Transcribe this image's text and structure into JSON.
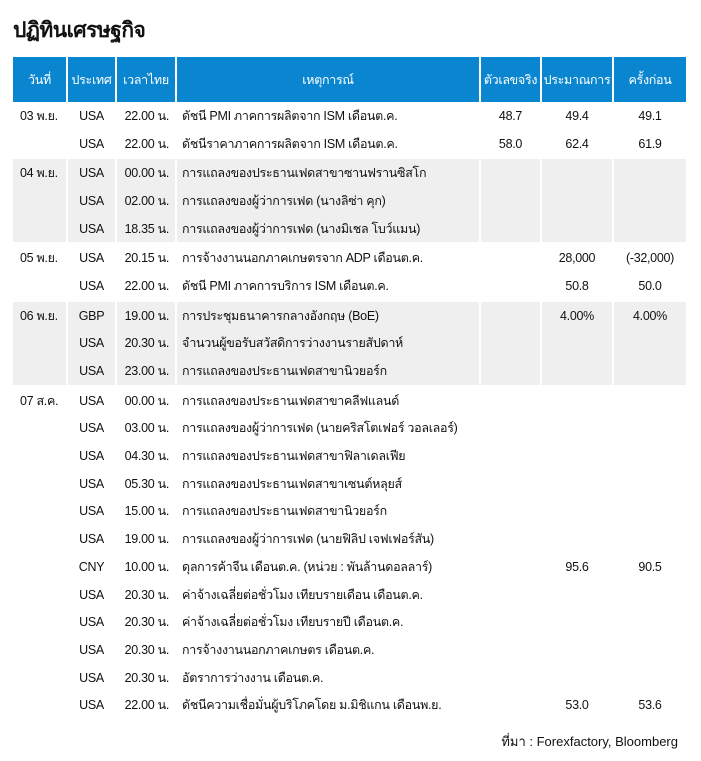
{
  "title": "ปฏิทินเศรษฐกิจ",
  "header_color": "#0a86d0",
  "columns": [
    "วันที่",
    "ประเทศ",
    "เวลาไทย",
    "เหตุการณ์",
    "ตัวเลขจริง",
    "ประมาณการ",
    "ครั้งก่อน"
  ],
  "rows": [
    {
      "date": "03 พ.ย.",
      "country": "USA",
      "time": "22.00 น.",
      "event": "ดัชนี PMI ภาคการผลิตจาก ISM เดือนต.ค.",
      "actual": "48.7",
      "forecast": "49.4",
      "previous": "49.1",
      "group": 0
    },
    {
      "date": "",
      "country": "USA",
      "time": "22.00 น.",
      "event": "ดัชนีราคาภาคการผลิตจาก ISM เดือนต.ค.",
      "actual": "58.0",
      "forecast": "62.4",
      "previous": "61.9",
      "group": 0
    },
    {
      "date": "04 พ.ย.",
      "country": "USA",
      "time": "00.00 น.",
      "event": "การแถลงของประธานเฟดสาขาซานฟรานซิสโก",
      "actual": "",
      "forecast": "",
      "previous": "",
      "group": 1
    },
    {
      "date": "",
      "country": "USA",
      "time": "02.00 น.",
      "event": "การแถลงของผู้ว่าการเฟด (นางลิซ่า คุก)",
      "actual": "",
      "forecast": "",
      "previous": "",
      "group": 1
    },
    {
      "date": "",
      "country": "USA",
      "time": "18.35 น.",
      "event": "การแถลงของผู้ว่าการเฟด (นางมิเชล โบว์แมน)",
      "actual": "",
      "forecast": "",
      "previous": "",
      "group": 1
    },
    {
      "date": "05 พ.ย.",
      "country": "USA",
      "time": "20.15 น.",
      "event": "การจ้างงานนอกภาคเกษตรจาก ADP เดือนต.ค.",
      "actual": "",
      "forecast": "28,000",
      "previous": "(-32,000)",
      "group": 2
    },
    {
      "date": "",
      "country": "USA",
      "time": "22.00 น.",
      "event": "ดัชนี PMI ภาคการบริการ ISM เดือนต.ค.",
      "actual": "",
      "forecast": "50.8",
      "previous": "50.0",
      "group": 2
    },
    {
      "date": "06 พ.ย.",
      "country": "GBP",
      "time": "19.00 น.",
      "event": "การประชุมธนาคารกลางอังกฤษ (BoE)",
      "actual": "",
      "forecast": "4.00%",
      "previous": "4.00%",
      "group": 3
    },
    {
      "date": "",
      "country": "USA",
      "time": "20.30 น.",
      "event": "จำนวนผู้ขอรับสวัสดิการว่างงานรายสัปดาห์",
      "actual": "",
      "forecast": "",
      "previous": "",
      "group": 3
    },
    {
      "date": "",
      "country": "USA",
      "time": "23.00 น.",
      "event": "การแถลงของประธานเฟดสาขานิวยอร์ก",
      "actual": "",
      "forecast": "",
      "previous": "",
      "group": 3
    },
    {
      "date": "07 ส.ค.",
      "country": "USA",
      "time": "00.00 น.",
      "event": "การแถลงของประธานเฟดสาขาคลีฟแลนด์",
      "actual": "",
      "forecast": "",
      "previous": "",
      "group": 4
    },
    {
      "date": "",
      "country": "USA",
      "time": "03.00 น.",
      "event": "การแถลงของผู้ว่าการเฟด (นายคริสโตเฟอร์ วอลเลอร์)",
      "actual": "",
      "forecast": "",
      "previous": "",
      "group": 4
    },
    {
      "date": "",
      "country": "USA",
      "time": "04.30 น.",
      "event": "การแถลงของประธานเฟดสาขาฟิลาเดลเฟีย",
      "actual": "",
      "forecast": "",
      "previous": "",
      "group": 4
    },
    {
      "date": "",
      "country": "USA",
      "time": "05.30 น.",
      "event": "การแถลงของประธานเฟดสาขาเซนต์หลุยส์",
      "actual": "",
      "forecast": "",
      "previous": "",
      "group": 4
    },
    {
      "date": "",
      "country": "USA",
      "time": "15.00 น.",
      "event": "การแถลงของประธานเฟดสาขานิวยอร์ก",
      "actual": "",
      "forecast": "",
      "previous": "",
      "group": 4
    },
    {
      "date": "",
      "country": "USA",
      "time": "19.00 น.",
      "event": "การแถลงของผู้ว่าการเฟด  (นายฟิลิป เจฟเฟอร์สัน)",
      "actual": "",
      "forecast": "",
      "previous": "",
      "group": 4
    },
    {
      "date": "",
      "country": "CNY",
      "time": "10.00 น.",
      "event": "ดุลการค้าจีน เดือนต.ค. (หน่วย : พันล้านดอลลาร์)",
      "actual": "",
      "forecast": "95.6",
      "previous": "90.5",
      "group": 4
    },
    {
      "date": "",
      "country": "USA",
      "time": "20.30 น.",
      "event": "ค่าจ้างเฉลี่ยต่อชั่วโมง เทียบรายเดือน เดือนต.ค.",
      "actual": "",
      "forecast": "",
      "previous": "",
      "group": 4
    },
    {
      "date": "",
      "country": "USA",
      "time": "20.30 น.",
      "event": "ค่าจ้างเฉลี่ยต่อชั่วโมง เทียบรายปี เดือนต.ค.",
      "actual": "",
      "forecast": "",
      "previous": "",
      "group": 4
    },
    {
      "date": "",
      "country": "USA",
      "time": "20.30 น.",
      "event": "การจ้างงานนอกภาคเกษตร เดือนต.ค.",
      "actual": "",
      "forecast": "",
      "previous": "",
      "group": 4
    },
    {
      "date": "",
      "country": "USA",
      "time": "20.30 น.",
      "event": "อัตราการว่างงาน เดือนต.ค.",
      "actual": "",
      "forecast": "",
      "previous": "",
      "group": 4
    },
    {
      "date": "",
      "country": "USA",
      "time": "22.00 น.",
      "event": "ดัชนีความเชื่อมั่นผู้บริโภคโดย ม.มิชิแกน เดือนพ.ย.",
      "actual": "",
      "forecast": "53.0",
      "previous": "53.6",
      "group": 4
    }
  ],
  "source": "ที่มา : Forexfactory, Bloomberg"
}
